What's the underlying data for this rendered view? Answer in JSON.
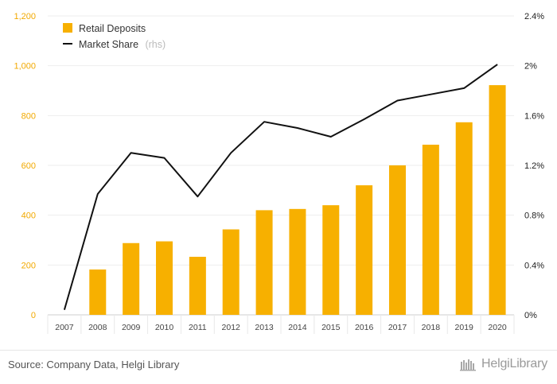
{
  "chart_data": {
    "type": "bar",
    "categories": [
      "2007",
      "2008",
      "2009",
      "2010",
      "2011",
      "2012",
      "2013",
      "2014",
      "2015",
      "2016",
      "2017",
      "2018",
      "2019",
      "2020"
    ],
    "series": [
      {
        "name": "Retail Deposits",
        "type": "bar",
        "axis": "left",
        "color": "#f7b000",
        "values": [
          0,
          182,
          288,
          295,
          233,
          343,
          420,
          425,
          440,
          520,
          600,
          683,
          773,
          922
        ]
      },
      {
        "name": "Market Share",
        "name_suffix": "(rhs)",
        "type": "line",
        "axis": "right",
        "color": "#111111",
        "values": [
          0.04,
          0.97,
          1.3,
          1.26,
          0.95,
          1.3,
          1.55,
          1.5,
          1.43,
          1.57,
          1.72,
          1.77,
          1.82,
          2.01
        ]
      }
    ],
    "ylim_left": [
      0,
      1200
    ],
    "yticks_left": [
      "0",
      "200",
      "400",
      "600",
      "800",
      "1,000",
      "1,200"
    ],
    "ylim_right": [
      0,
      2.4
    ],
    "yticks_right": [
      "0%",
      "0.4%",
      "0.8%",
      "1.2%",
      "1.6%",
      "2%",
      "2.4%"
    ],
    "grid": true,
    "legend_position": "top-left"
  },
  "footer": {
    "source": "Source: Company Data, Helgi Library",
    "brand": "HelgiLibrary"
  },
  "colors": {
    "bar": "#f7b000",
    "line": "#111111",
    "left_axis_text": "#f2a900"
  },
  "icons": {
    "brand_logo": "helgi-library-logo-icon"
  }
}
